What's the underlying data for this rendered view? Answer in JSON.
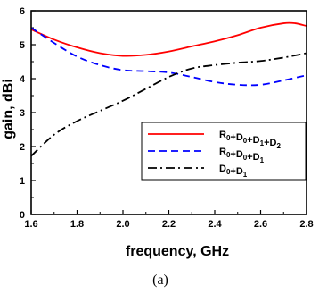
{
  "chart_data": {
    "type": "line",
    "title": "",
    "xlabel": "frequency, GHz",
    "ylabel": "gain, dBi",
    "xlim": [
      1.6,
      2.8
    ],
    "ylim": [
      0,
      6
    ],
    "x_ticks": [
      "1.6",
      "1.8",
      "2.0",
      "2.2",
      "2.4",
      "2.6",
      "2.8"
    ],
    "y_ticks": [
      "0",
      "1",
      "2",
      "3",
      "4",
      "5",
      "6"
    ],
    "grid": false,
    "legend_position": "center-right",
    "series": [
      {
        "name": "R0+D0+D1+D2",
        "label_parts": [
          [
            "R",
            "0"
          ],
          [
            "+D",
            "0"
          ],
          [
            "+D",
            "1"
          ],
          [
            "+D",
            "2"
          ]
        ],
        "color": "#ff0000",
        "style": "solid",
        "x": [
          1.6,
          1.7,
          1.8,
          1.9,
          2.0,
          2.1,
          2.2,
          2.3,
          2.4,
          2.5,
          2.6,
          2.7,
          2.75,
          2.8
        ],
        "y": [
          5.45,
          5.15,
          4.92,
          4.75,
          4.67,
          4.7,
          4.8,
          4.95,
          5.1,
          5.28,
          5.5,
          5.63,
          5.63,
          5.55
        ]
      },
      {
        "name": "R0+D0+D1",
        "label_parts": [
          [
            "R",
            "0"
          ],
          [
            "+D",
            "0"
          ],
          [
            "+D",
            "1"
          ]
        ],
        "color": "#0000ff",
        "style": "dashed",
        "x": [
          1.6,
          1.7,
          1.8,
          1.9,
          2.0,
          2.1,
          2.2,
          2.3,
          2.4,
          2.5,
          2.6,
          2.7,
          2.8
        ],
        "y": [
          5.5,
          5.05,
          4.65,
          4.4,
          4.25,
          4.22,
          4.18,
          4.05,
          3.9,
          3.82,
          3.82,
          3.95,
          4.1
        ]
      },
      {
        "name": "D0+D1",
        "label_parts": [
          [
            "D",
            "0"
          ],
          [
            "+D",
            "1"
          ]
        ],
        "color": "#000000",
        "style": "dashdot",
        "x": [
          1.6,
          1.7,
          1.8,
          1.9,
          2.0,
          2.1,
          2.2,
          2.3,
          2.4,
          2.5,
          2.6,
          2.7,
          2.8
        ],
        "y": [
          1.72,
          2.35,
          2.75,
          3.05,
          3.35,
          3.7,
          4.05,
          4.3,
          4.4,
          4.47,
          4.52,
          4.62,
          4.75
        ]
      }
    ]
  },
  "caption": "(a)"
}
